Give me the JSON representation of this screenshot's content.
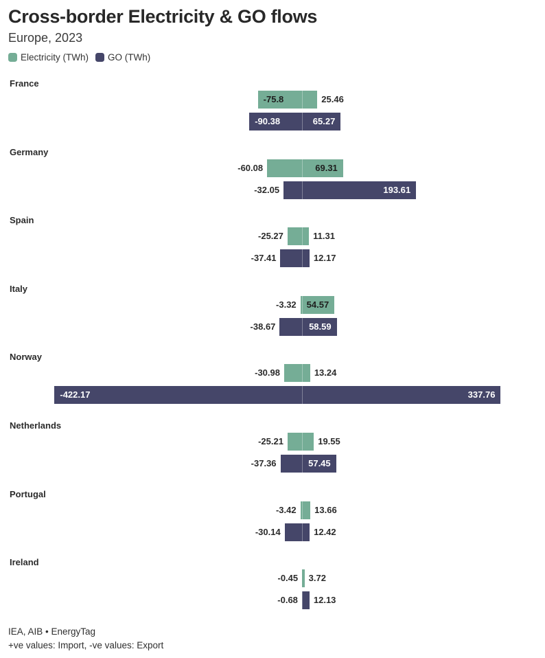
{
  "title": "Cross-border Electricity & GO flows",
  "subtitle": "Europe, 2023",
  "legend": [
    {
      "label": "Electricity (TWh)",
      "color": "#75ad96"
    },
    {
      "label": "GO (TWh)",
      "color": "#454669"
    }
  ],
  "footer": {
    "source": "IEA, AIB • EnergyTag",
    "note": "+ve values: Import, -ve values: Export"
  },
  "chart_data": {
    "type": "bar",
    "variant": "horizontal-diverging-range",
    "title": "Cross-border Electricity & GO flows",
    "subtitle": "Europe, 2023",
    "unit": "TWh",
    "value_convention": "+ve values: Import, -ve values: Export",
    "series_names": [
      "Electricity (TWh)",
      "GO (TWh)"
    ],
    "colors": {
      "electricity": "#75ad96",
      "go": "#454669"
    },
    "axis": {
      "hidden": true,
      "xlim": [
        -422.17,
        337.76
      ]
    },
    "legend_position": "top-left",
    "grid": false,
    "countries": [
      {
        "name": "France",
        "electricity": {
          "export": -75.8,
          "import": 25.46,
          "export_label": "-75.8",
          "import_label": "25.46",
          "export_label_inside": true,
          "import_label_inside": false
        },
        "go": {
          "export": -90.38,
          "import": 65.27,
          "export_label": "-90.38",
          "import_label": "65.27",
          "export_label_inside": true,
          "import_label_inside": true
        }
      },
      {
        "name": "Germany",
        "electricity": {
          "export": -60.08,
          "import": 69.31,
          "export_label": "-60.08",
          "import_label": "69.31",
          "export_label_inside": false,
          "import_label_inside": true
        },
        "go": {
          "export": -32.05,
          "import": 193.61,
          "export_label": "-32.05",
          "import_label": "193.61",
          "export_label_inside": false,
          "import_label_inside": true
        }
      },
      {
        "name": "Spain",
        "electricity": {
          "export": -25.27,
          "import": 11.31,
          "export_label": "-25.27",
          "import_label": "11.31",
          "export_label_inside": false,
          "import_label_inside": false
        },
        "go": {
          "export": -37.41,
          "import": 12.17,
          "export_label": "-37.41",
          "import_label": "12.17",
          "export_label_inside": false,
          "import_label_inside": false
        }
      },
      {
        "name": "Italy",
        "electricity": {
          "export": -3.32,
          "import": 54.57,
          "export_label": "-3.32",
          "import_label": "54.57",
          "export_label_inside": false,
          "import_label_inside": true
        },
        "go": {
          "export": -38.67,
          "import": 58.59,
          "export_label": "-38.67",
          "import_label": "58.59",
          "export_label_inside": false,
          "import_label_inside": true
        }
      },
      {
        "name": "Norway",
        "electricity": {
          "export": -30.98,
          "import": 13.24,
          "export_label": "-30.98",
          "import_label": "13.24",
          "export_label_inside": false,
          "import_label_inside": false
        },
        "go": {
          "export": -422.17,
          "import": 337.76,
          "export_label": "-422.17",
          "import_label": "337.76",
          "export_label_inside": true,
          "import_label_inside": true
        }
      },
      {
        "name": "Netherlands",
        "electricity": {
          "export": -25.21,
          "import": 19.55,
          "export_label": "-25.21",
          "import_label": "19.55",
          "export_label_inside": false,
          "import_label_inside": false
        },
        "go": {
          "export": -37.36,
          "import": 57.45,
          "export_label": "-37.36",
          "import_label": "57.45",
          "export_label_inside": false,
          "import_label_inside": true
        }
      },
      {
        "name": "Portugal",
        "electricity": {
          "export": -3.42,
          "import": 13.66,
          "export_label": "-3.42",
          "import_label": "13.66",
          "export_label_inside": false,
          "import_label_inside": false
        },
        "go": {
          "export": -30.14,
          "import": 12.42,
          "export_label": "-30.14",
          "import_label": "12.42",
          "export_label_inside": false,
          "import_label_inside": false
        }
      },
      {
        "name": "Ireland",
        "electricity": {
          "export": -0.45,
          "import": 3.72,
          "export_label": "-0.45",
          "import_label": "3.72",
          "export_label_inside": false,
          "import_label_inside": false
        },
        "go": {
          "export": -0.68,
          "import": 12.13,
          "export_label": "-0.68",
          "import_label": "12.13",
          "export_label_inside": false,
          "import_label_inside": false
        }
      }
    ]
  }
}
